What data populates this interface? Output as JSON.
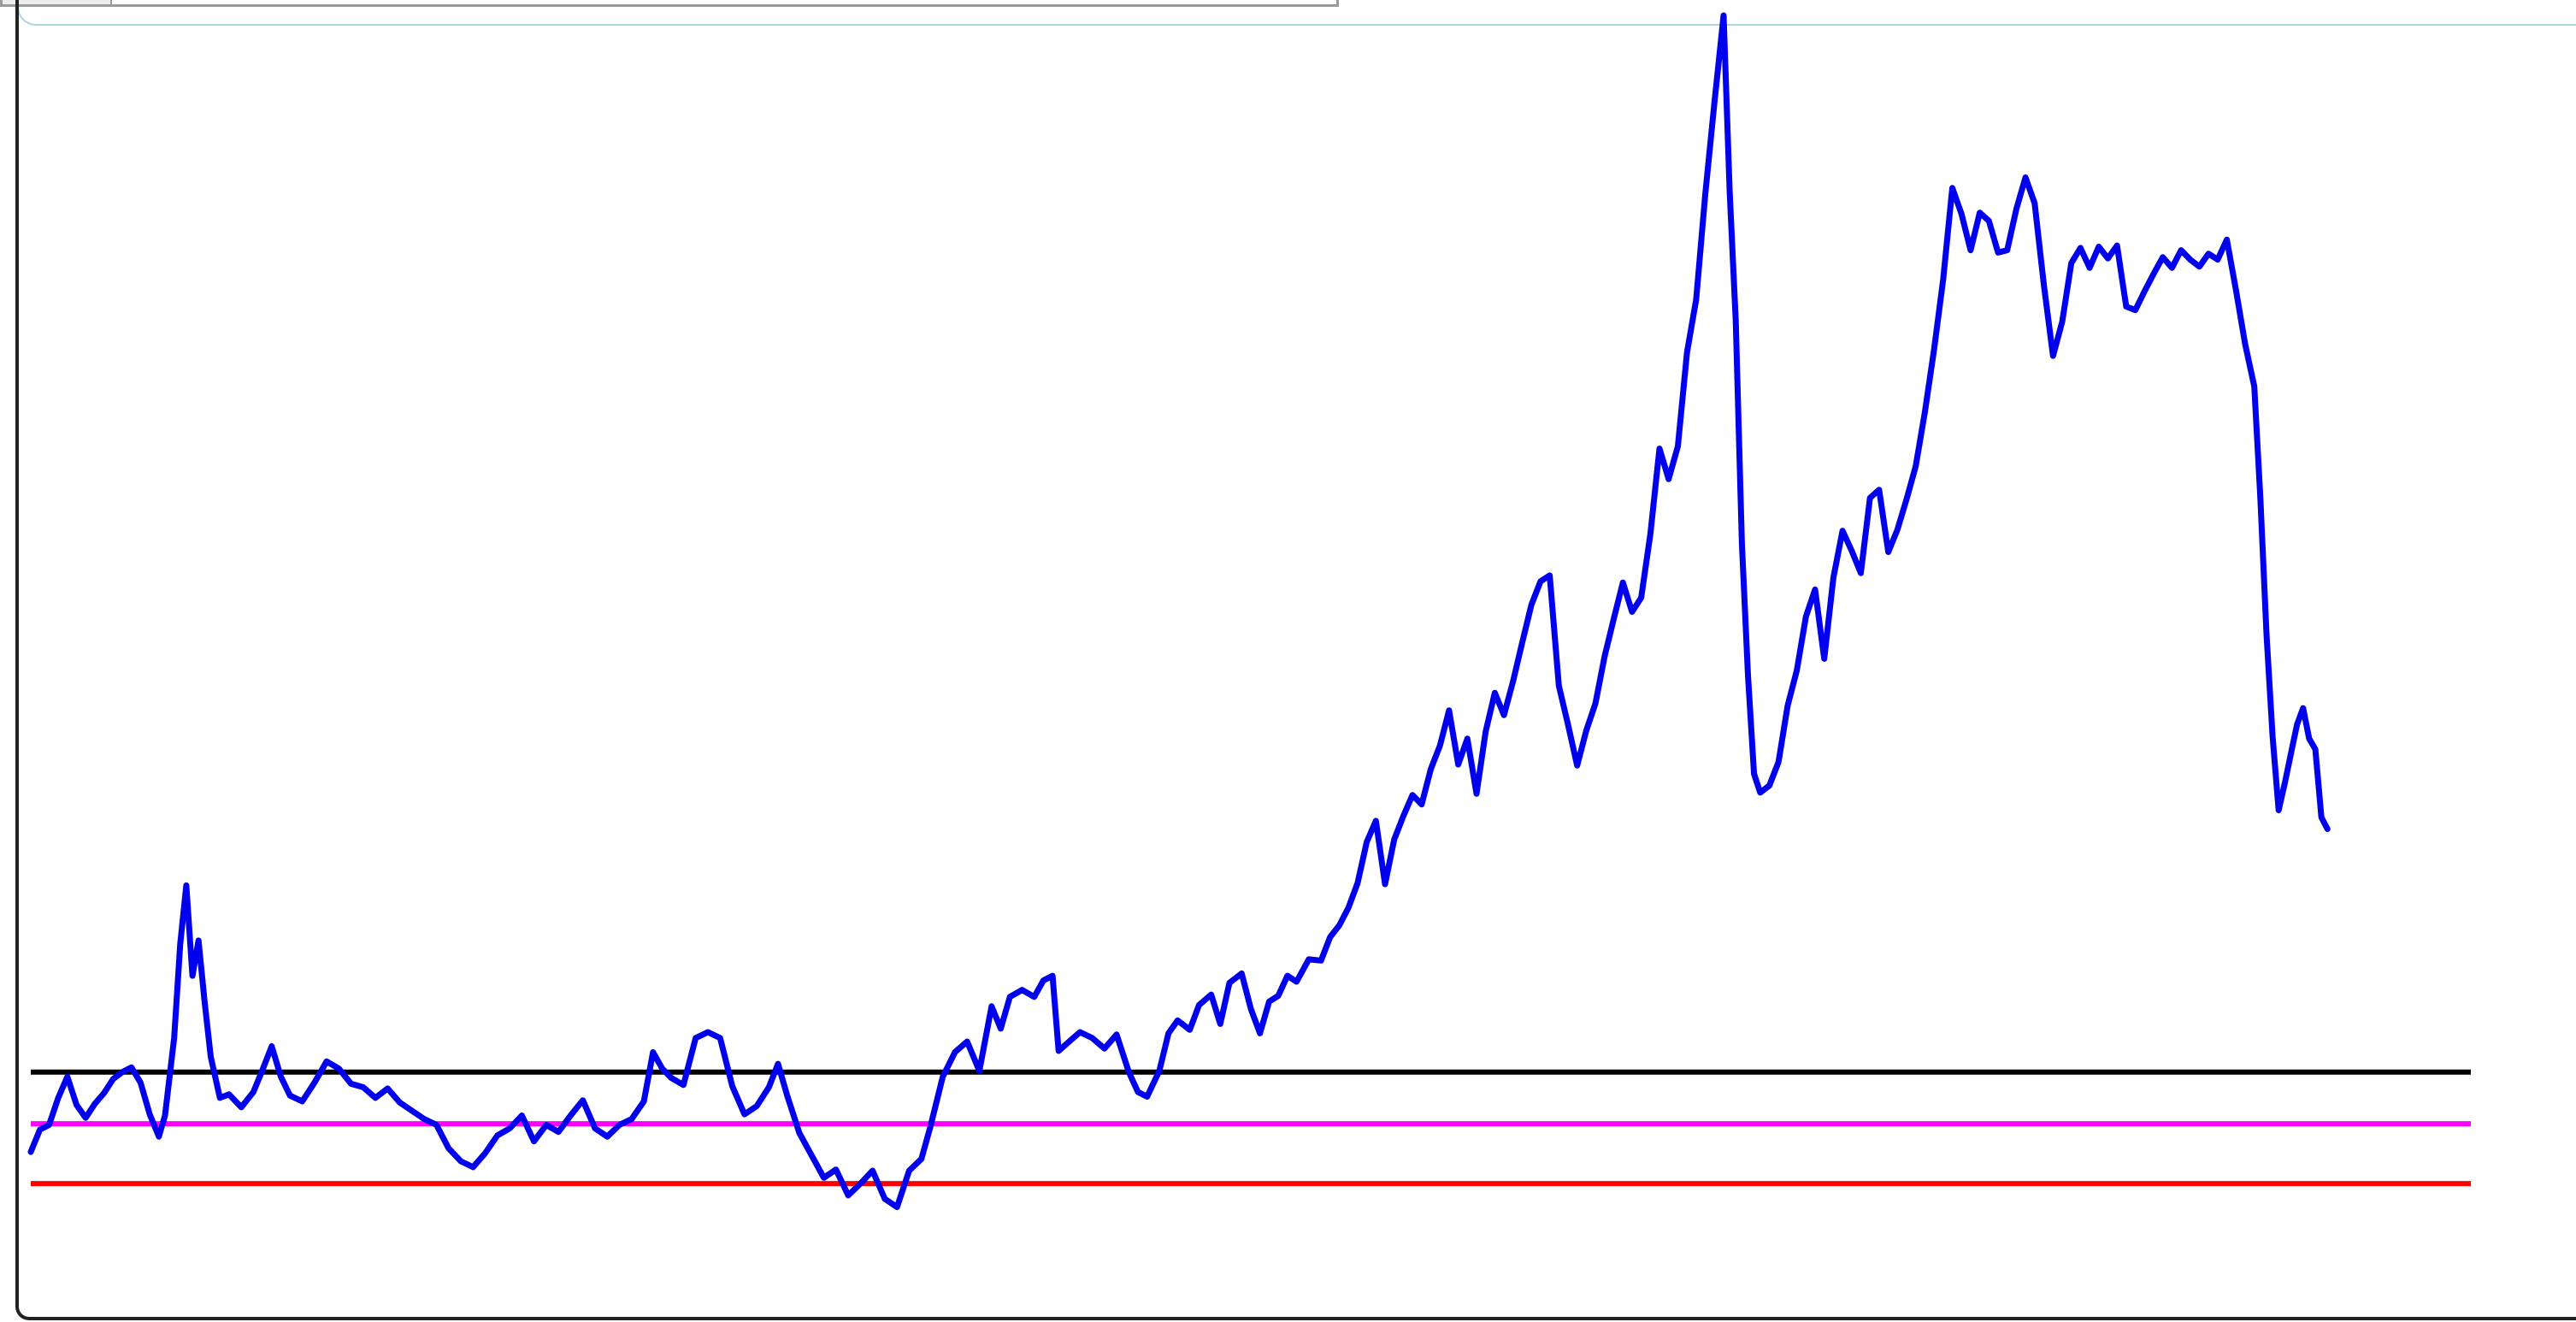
{
  "chart_data": {
    "type": "line",
    "title": "",
    "xlabel": "",
    "ylabel": "",
    "x_range": [
      0,
      1600
    ],
    "ylim": [
      0,
      100
    ],
    "grid": false,
    "legend": "none",
    "series": [
      {
        "color": "#0000ee",
        "points": [
          [
            0,
            3.2
          ],
          [
            6,
            5.1
          ],
          [
            12,
            5.5
          ],
          [
            18,
            7.8
          ],
          [
            24,
            9.6
          ],
          [
            30,
            7.2
          ],
          [
            36,
            6.1
          ],
          [
            42,
            7.3
          ],
          [
            48,
            8.2
          ],
          [
            54,
            9.4
          ],
          [
            60,
            10.0
          ],
          [
            66,
            10.4
          ],
          [
            72,
            9.1
          ],
          [
            78,
            6.4
          ],
          [
            84,
            4.5
          ],
          [
            88,
            6.3
          ],
          [
            94,
            12.9
          ],
          [
            98,
            20.9
          ],
          [
            102,
            25.9
          ],
          [
            106,
            18.2
          ],
          [
            110,
            21.2
          ],
          [
            114,
            16.0
          ],
          [
            118,
            11.3
          ],
          [
            124,
            7.8
          ],
          [
            130,
            8.1
          ],
          [
            138,
            7.0
          ],
          [
            146,
            8.3
          ],
          [
            152,
            10.2
          ],
          [
            158,
            12.2
          ],
          [
            164,
            9.6
          ],
          [
            170,
            8.0
          ],
          [
            178,
            7.5
          ],
          [
            186,
            9.1
          ],
          [
            194,
            10.9
          ],
          [
            202,
            10.3
          ],
          [
            210,
            9.0
          ],
          [
            218,
            8.7
          ],
          [
            226,
            7.8
          ],
          [
            234,
            8.6
          ],
          [
            242,
            7.4
          ],
          [
            250,
            6.7
          ],
          [
            258,
            6.0
          ],
          [
            266,
            5.5
          ],
          [
            274,
            3.5
          ],
          [
            282,
            2.4
          ],
          [
            290,
            1.9
          ],
          [
            298,
            3.1
          ],
          [
            306,
            4.6
          ],
          [
            314,
            5.2
          ],
          [
            322,
            6.3
          ],
          [
            330,
            4.1
          ],
          [
            338,
            5.5
          ],
          [
            346,
            4.9
          ],
          [
            354,
            6.3
          ],
          [
            362,
            7.6
          ],
          [
            370,
            5.2
          ],
          [
            378,
            4.5
          ],
          [
            386,
            5.5
          ],
          [
            394,
            6.0
          ],
          [
            402,
            7.5
          ],
          [
            408,
            11.7
          ],
          [
            414,
            10.3
          ],
          [
            420,
            9.5
          ],
          [
            428,
            8.9
          ],
          [
            436,
            12.9
          ],
          [
            444,
            13.4
          ],
          [
            452,
            12.9
          ],
          [
            460,
            8.8
          ],
          [
            468,
            6.4
          ],
          [
            476,
            7.1
          ],
          [
            484,
            8.7
          ],
          [
            490,
            10.7
          ],
          [
            496,
            8.0
          ],
          [
            504,
            4.8
          ],
          [
            512,
            2.9
          ],
          [
            520,
            1.0
          ],
          [
            528,
            1.7
          ],
          [
            536,
            -0.5
          ],
          [
            544,
            0.5
          ],
          [
            552,
            1.6
          ],
          [
            560,
            -0.8
          ],
          [
            568,
            -1.5
          ],
          [
            576,
            1.6
          ],
          [
            584,
            2.6
          ],
          [
            590,
            5.4
          ],
          [
            598,
            9.6
          ],
          [
            606,
            11.7
          ],
          [
            614,
            12.6
          ],
          [
            622,
            10.1
          ],
          [
            630,
            15.6
          ],
          [
            636,
            13.7
          ],
          [
            642,
            16.4
          ],
          [
            650,
            17.0
          ],
          [
            658,
            16.4
          ],
          [
            664,
            17.8
          ],
          [
            670,
            18.2
          ],
          [
            674,
            11.8
          ],
          [
            680,
            12.5
          ],
          [
            688,
            13.4
          ],
          [
            696,
            12.9
          ],
          [
            704,
            12.0
          ],
          [
            712,
            13.2
          ],
          [
            720,
            10.0
          ],
          [
            726,
            8.3
          ],
          [
            732,
            7.9
          ],
          [
            740,
            10.1
          ],
          [
            746,
            13.3
          ],
          [
            752,
            14.4
          ],
          [
            760,
            13.6
          ],
          [
            766,
            15.7
          ],
          [
            774,
            16.6
          ],
          [
            780,
            14.1
          ],
          [
            786,
            17.6
          ],
          [
            794,
            18.4
          ],
          [
            800,
            15.4
          ],
          [
            806,
            13.3
          ],
          [
            812,
            16.0
          ],
          [
            818,
            16.5
          ],
          [
            824,
            18.2
          ],
          [
            830,
            17.7
          ],
          [
            838,
            19.6
          ],
          [
            846,
            19.5
          ],
          [
            852,
            21.5
          ],
          [
            858,
            22.5
          ],
          [
            864,
            24.0
          ],
          [
            870,
            26.1
          ],
          [
            876,
            29.6
          ],
          [
            882,
            31.4
          ],
          [
            888,
            26.0
          ],
          [
            894,
            29.8
          ],
          [
            900,
            31.8
          ],
          [
            906,
            33.6
          ],
          [
            912,
            32.8
          ],
          [
            918,
            35.8
          ],
          [
            924,
            37.8
          ],
          [
            930,
            40.8
          ],
          [
            936,
            36.2
          ],
          [
            942,
            38.4
          ],
          [
            948,
            33.7
          ],
          [
            954,
            39.0
          ],
          [
            960,
            42.3
          ],
          [
            966,
            40.4
          ],
          [
            972,
            43.3
          ],
          [
            978,
            46.6
          ],
          [
            984,
            49.8
          ],
          [
            990,
            51.8
          ],
          [
            996,
            52.3
          ],
          [
            1002,
            42.9
          ],
          [
            1008,
            39.6
          ],
          [
            1014,
            36.1
          ],
          [
            1020,
            39.1
          ],
          [
            1026,
            41.4
          ],
          [
            1032,
            45.4
          ],
          [
            1038,
            48.6
          ],
          [
            1044,
            51.7
          ],
          [
            1050,
            49.2
          ],
          [
            1056,
            50.4
          ],
          [
            1062,
            55.8
          ],
          [
            1068,
            63.1
          ],
          [
            1074,
            60.5
          ],
          [
            1080,
            63.3
          ],
          [
            1086,
            71.3
          ],
          [
            1092,
            75.8
          ],
          [
            1098,
            84.8
          ],
          [
            1104,
            92.6
          ],
          [
            1110,
            100.0
          ],
          [
            1114,
            85.0
          ],
          [
            1118,
            74.0
          ],
          [
            1122,
            55.0
          ],
          [
            1126,
            43.8
          ],
          [
            1130,
            35.4
          ],
          [
            1134,
            33.8
          ],
          [
            1140,
            34.4
          ],
          [
            1146,
            36.4
          ],
          [
            1152,
            41.2
          ],
          [
            1158,
            44.2
          ],
          [
            1164,
            48.8
          ],
          [
            1170,
            51.1
          ],
          [
            1176,
            45.2
          ],
          [
            1182,
            52.1
          ],
          [
            1188,
            56.1
          ],
          [
            1194,
            54.4
          ],
          [
            1200,
            52.5
          ],
          [
            1206,
            58.9
          ],
          [
            1212,
            59.6
          ],
          [
            1218,
            54.3
          ],
          [
            1224,
            56.2
          ],
          [
            1230,
            58.8
          ],
          [
            1236,
            61.6
          ],
          [
            1242,
            66.2
          ],
          [
            1248,
            71.5
          ],
          [
            1254,
            77.5
          ],
          [
            1260,
            85.3
          ],
          [
            1266,
            83.1
          ],
          [
            1272,
            80.0
          ],
          [
            1278,
            83.2
          ],
          [
            1284,
            82.5
          ],
          [
            1290,
            79.8
          ],
          [
            1296,
            80.0
          ],
          [
            1302,
            83.5
          ],
          [
            1308,
            86.2
          ],
          [
            1314,
            84.0
          ],
          [
            1320,
            77.1
          ],
          [
            1326,
            71.0
          ],
          [
            1332,
            73.9
          ],
          [
            1338,
            78.9
          ],
          [
            1344,
            80.2
          ],
          [
            1350,
            78.5
          ],
          [
            1356,
            80.3
          ],
          [
            1362,
            79.3
          ],
          [
            1368,
            80.4
          ],
          [
            1374,
            75.2
          ],
          [
            1380,
            74.9
          ],
          [
            1386,
            76.5
          ],
          [
            1392,
            78.0
          ],
          [
            1398,
            79.4
          ],
          [
            1404,
            78.5
          ],
          [
            1410,
            80.0
          ],
          [
            1416,
            79.2
          ],
          [
            1422,
            78.6
          ],
          [
            1428,
            79.7
          ],
          [
            1434,
            79.2
          ],
          [
            1440,
            80.9
          ],
          [
            1446,
            76.6
          ],
          [
            1452,
            72.0
          ],
          [
            1458,
            68.4
          ],
          [
            1462,
            58.9
          ],
          [
            1466,
            47.3
          ],
          [
            1470,
            38.6
          ],
          [
            1474,
            32.3
          ],
          [
            1478,
            34.6
          ],
          [
            1482,
            37.1
          ],
          [
            1486,
            39.6
          ],
          [
            1490,
            41.0
          ],
          [
            1494,
            38.4
          ],
          [
            1498,
            37.5
          ],
          [
            1502,
            31.7
          ],
          [
            1506,
            30.7
          ]
        ]
      }
    ],
    "reference_lines": [
      {
        "y": 10.0,
        "color": "#000000"
      },
      {
        "y": 5.6,
        "color": "#ff00ff"
      },
      {
        "y": 0.5,
        "color": "#ff0000"
      }
    ]
  }
}
